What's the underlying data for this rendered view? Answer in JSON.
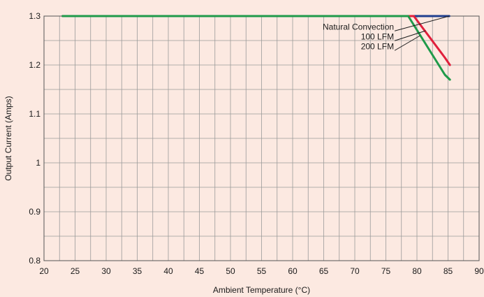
{
  "chart_data": {
    "type": "line",
    "title": "",
    "xlabel": "Ambient Temperature (°C)",
    "ylabel": "Output Current (Amps)",
    "xlim": [
      20,
      90
    ],
    "ylim": [
      0.8,
      1.3
    ],
    "x_ticks": [
      20,
      25,
      30,
      35,
      40,
      45,
      50,
      55,
      60,
      65,
      70,
      75,
      80,
      85,
      90
    ],
    "x_tick_labels": [
      "20",
      "25",
      "30",
      "35",
      "40",
      "45",
      "50",
      "55",
      "60",
      "65",
      "70",
      "75",
      "80",
      "85",
      "90"
    ],
    "y_ticks": [
      0.8,
      0.9,
      1.0,
      1.1,
      1.2,
      1.3
    ],
    "y_tick_labels": [
      "0.8",
      "0.9",
      "1",
      "1.1",
      "1.2",
      "1.3"
    ],
    "x_minor_step": 2.5,
    "y_minor_step": 0.05,
    "grid": true,
    "background_color": "#fce9e1",
    "grid_color": "#9a9a9a",
    "series": [
      {
        "name": "Natural Convection",
        "color": "#1f3f8f",
        "x": [
          23,
          85.2
        ],
        "y": [
          1.3,
          1.3
        ]
      },
      {
        "name": "100 LFM",
        "color": "#e0203c",
        "x": [
          23,
          79.5,
          84.5,
          85.3
        ],
        "y": [
          1.3,
          1.3,
          1.215,
          1.2
        ]
      },
      {
        "name": "200 LFM",
        "color": "#1f9a4a",
        "x": [
          23,
          78.6,
          84.5,
          85.3
        ],
        "y": [
          1.3,
          1.3,
          1.18,
          1.17
        ]
      }
    ],
    "annotations": [
      {
        "text": "Natural Convection",
        "series": "Natural Convection",
        "label_at": [
          76.3,
          1.2725
        ],
        "points_to": [
          85.2,
          1.3
        ]
      },
      {
        "text": "100 LFM",
        "series": "100 LFM",
        "label_at": [
          76.3,
          1.2525
        ],
        "points_to": [
          81.4,
          1.27
        ]
      },
      {
        "text": "200 LFM",
        "series": "200 LFM",
        "label_at": [
          76.3,
          1.2325
        ],
        "points_to": [
          80.5,
          1.26
        ]
      }
    ]
  }
}
